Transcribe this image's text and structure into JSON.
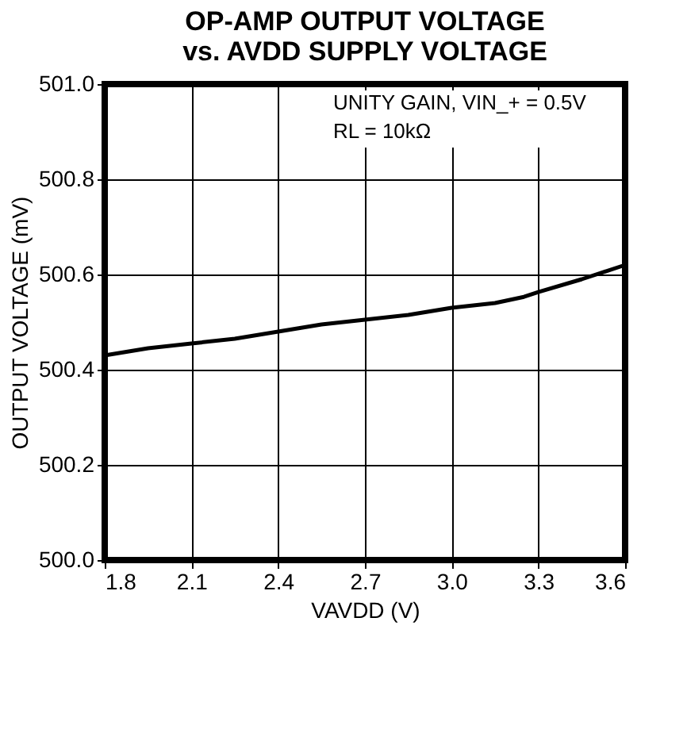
{
  "chart_data": {
    "type": "line",
    "title": [
      "OP-AMP OUTPUT VOLTAGE",
      "vs. AVDD SUPPLY VOLTAGE"
    ],
    "xlabel": "VAVDD (V)",
    "ylabel": "OUTPUT VOLTAGE (mV)",
    "x": [
      1.8,
      1.95,
      2.1,
      2.25,
      2.4,
      2.55,
      2.7,
      2.85,
      3.0,
      3.15,
      3.25,
      3.3,
      3.45,
      3.6
    ],
    "series": [
      {
        "color": "#000000",
        "values": [
          500.43,
          500.445,
          500.455,
          500.465,
          500.48,
          500.495,
          500.505,
          500.515,
          500.53,
          500.54,
          500.553,
          500.563,
          500.59,
          500.62
        ]
      }
    ],
    "xlim": [
      1.8,
      3.6
    ],
    "xticks": [
      1.8,
      2.1,
      2.4,
      2.7,
      {
        "value": 3.0,
        "label": "3.0"
      },
      3.3,
      3.6
    ],
    "ylim": [
      500.0,
      501.0
    ],
    "yticks": [
      {
        "value": 500.0,
        "label": "500.0"
      },
      500.2,
      500.4,
      500.6,
      500.8,
      {
        "value": 501.0,
        "label": "501.0"
      }
    ],
    "grid": true,
    "marker": "none",
    "line_style": "solid",
    "annotations": [
      "UNITY GAIN, VIN_+ = 0.5V",
      "RL = 10kΩ"
    ]
  }
}
